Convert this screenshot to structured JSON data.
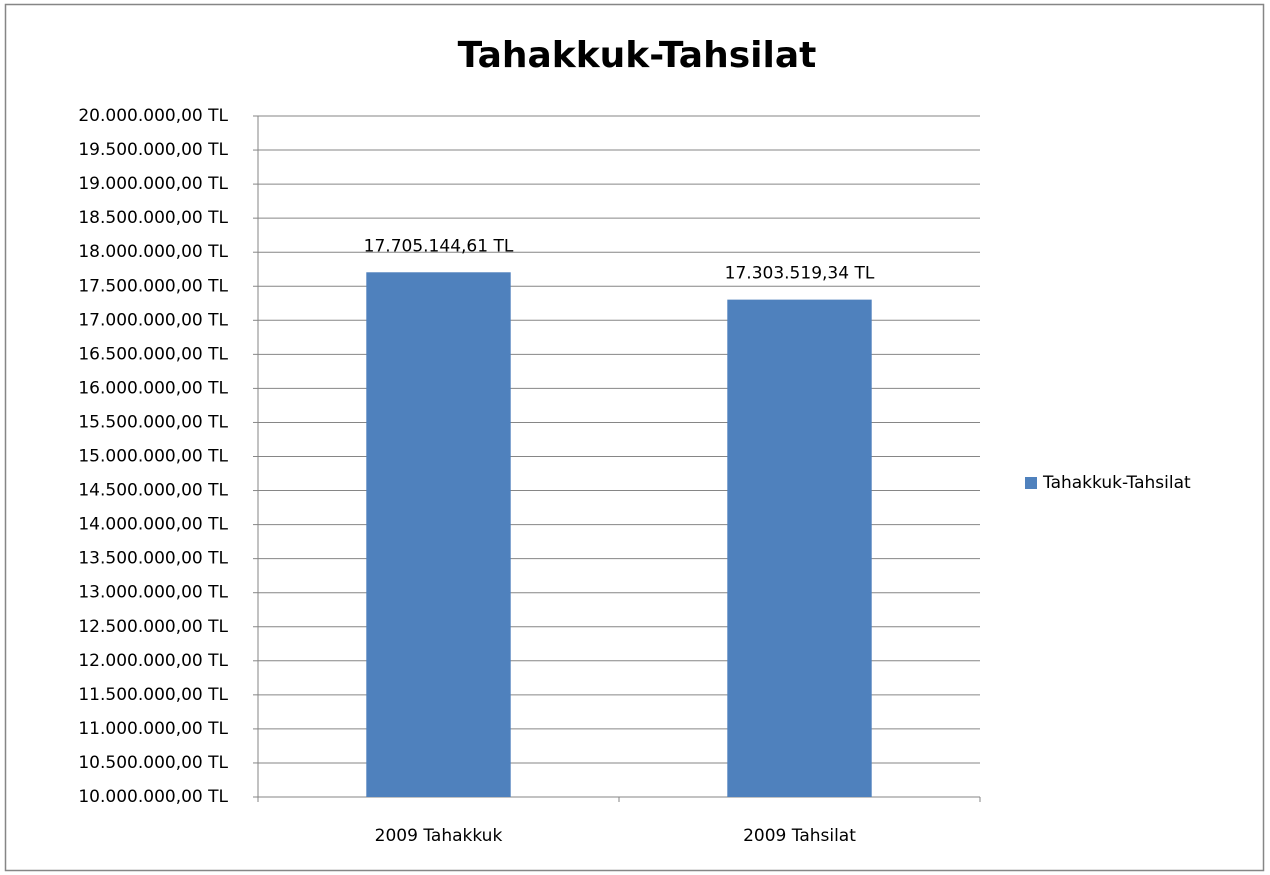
{
  "chart_data": {
    "type": "bar",
    "title": "Tahakkuk-Tahsilat",
    "categories": [
      "2009 Tahakkuk",
      "2009 Tahsilat"
    ],
    "series": [
      {
        "name": "Tahakkuk-Tahsilat",
        "color": "#4f81bd",
        "values": [
          17705144.61,
          17303519.34
        ],
        "value_labels": [
          "17.705.144,61 TL",
          "17.303.519,34 TL"
        ]
      }
    ],
    "ylim": [
      10000000,
      20000000
    ],
    "yticks": [
      {
        "value": 10000000,
        "label": "10.000.000,00 TL"
      },
      {
        "value": 10500000,
        "label": "10.500.000,00 TL"
      },
      {
        "value": 11000000,
        "label": "11.000.000,00 TL"
      },
      {
        "value": 11500000,
        "label": "11.500.000,00 TL"
      },
      {
        "value": 12000000,
        "label": "12.000.000,00 TL"
      },
      {
        "value": 12500000,
        "label": "12.500.000,00 TL"
      },
      {
        "value": 13000000,
        "label": "13.000.000,00 TL"
      },
      {
        "value": 13500000,
        "label": "13.500.000,00 TL"
      },
      {
        "value": 14000000,
        "label": "14.000.000,00 TL"
      },
      {
        "value": 14500000,
        "label": "14.500.000,00 TL"
      },
      {
        "value": 15000000,
        "label": "15.000.000,00 TL"
      },
      {
        "value": 15500000,
        "label": "15.500.000,00 TL"
      },
      {
        "value": 16000000,
        "label": "16.000.000,00 TL"
      },
      {
        "value": 16500000,
        "label": "16.500.000,00 TL"
      },
      {
        "value": 17000000,
        "label": "17.000.000,00 TL"
      },
      {
        "value": 17500000,
        "label": "17.500.000,00 TL"
      },
      {
        "value": 18000000,
        "label": "18.000.000,00 TL"
      },
      {
        "value": 18500000,
        "label": "18.500.000,00 TL"
      },
      {
        "value": 19000000,
        "label": "19.000.000,00 TL"
      },
      {
        "value": 19500000,
        "label": "19.500.000,00 TL"
      },
      {
        "value": 20000000,
        "label": "20.000.000,00 TL"
      }
    ],
    "grid": true,
    "legend": "right"
  }
}
